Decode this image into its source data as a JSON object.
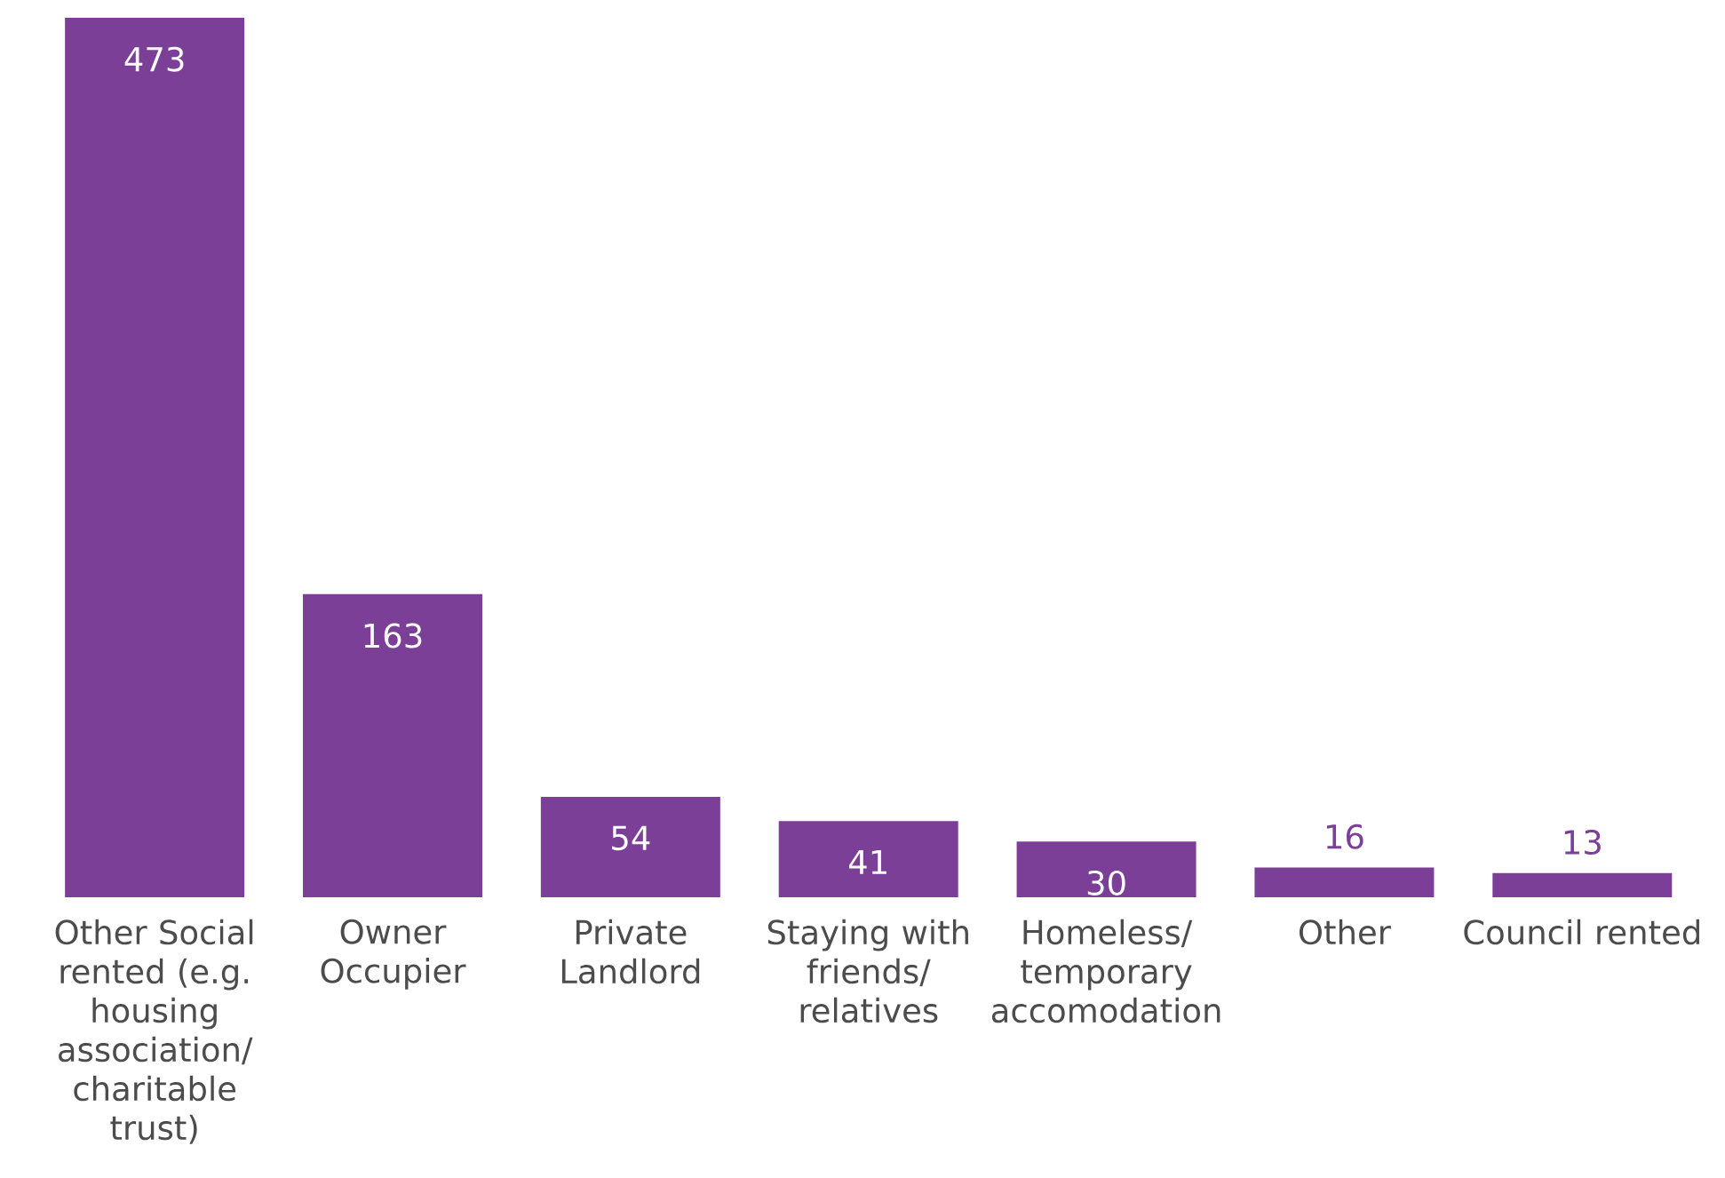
{
  "chart_data": {
    "type": "bar",
    "categories": [
      "Other Social rented (e.g. housing association/ charitable trust)",
      "Owner Occupier",
      "Private Landlord",
      "Staying with friends/ relatives",
      "Homeless/ temporary accomodation",
      "Other",
      "Council rented"
    ],
    "values": [
      473,
      163,
      54,
      41,
      30,
      16,
      13
    ],
    "color": "#7b3f98",
    "data_labels": true
  }
}
